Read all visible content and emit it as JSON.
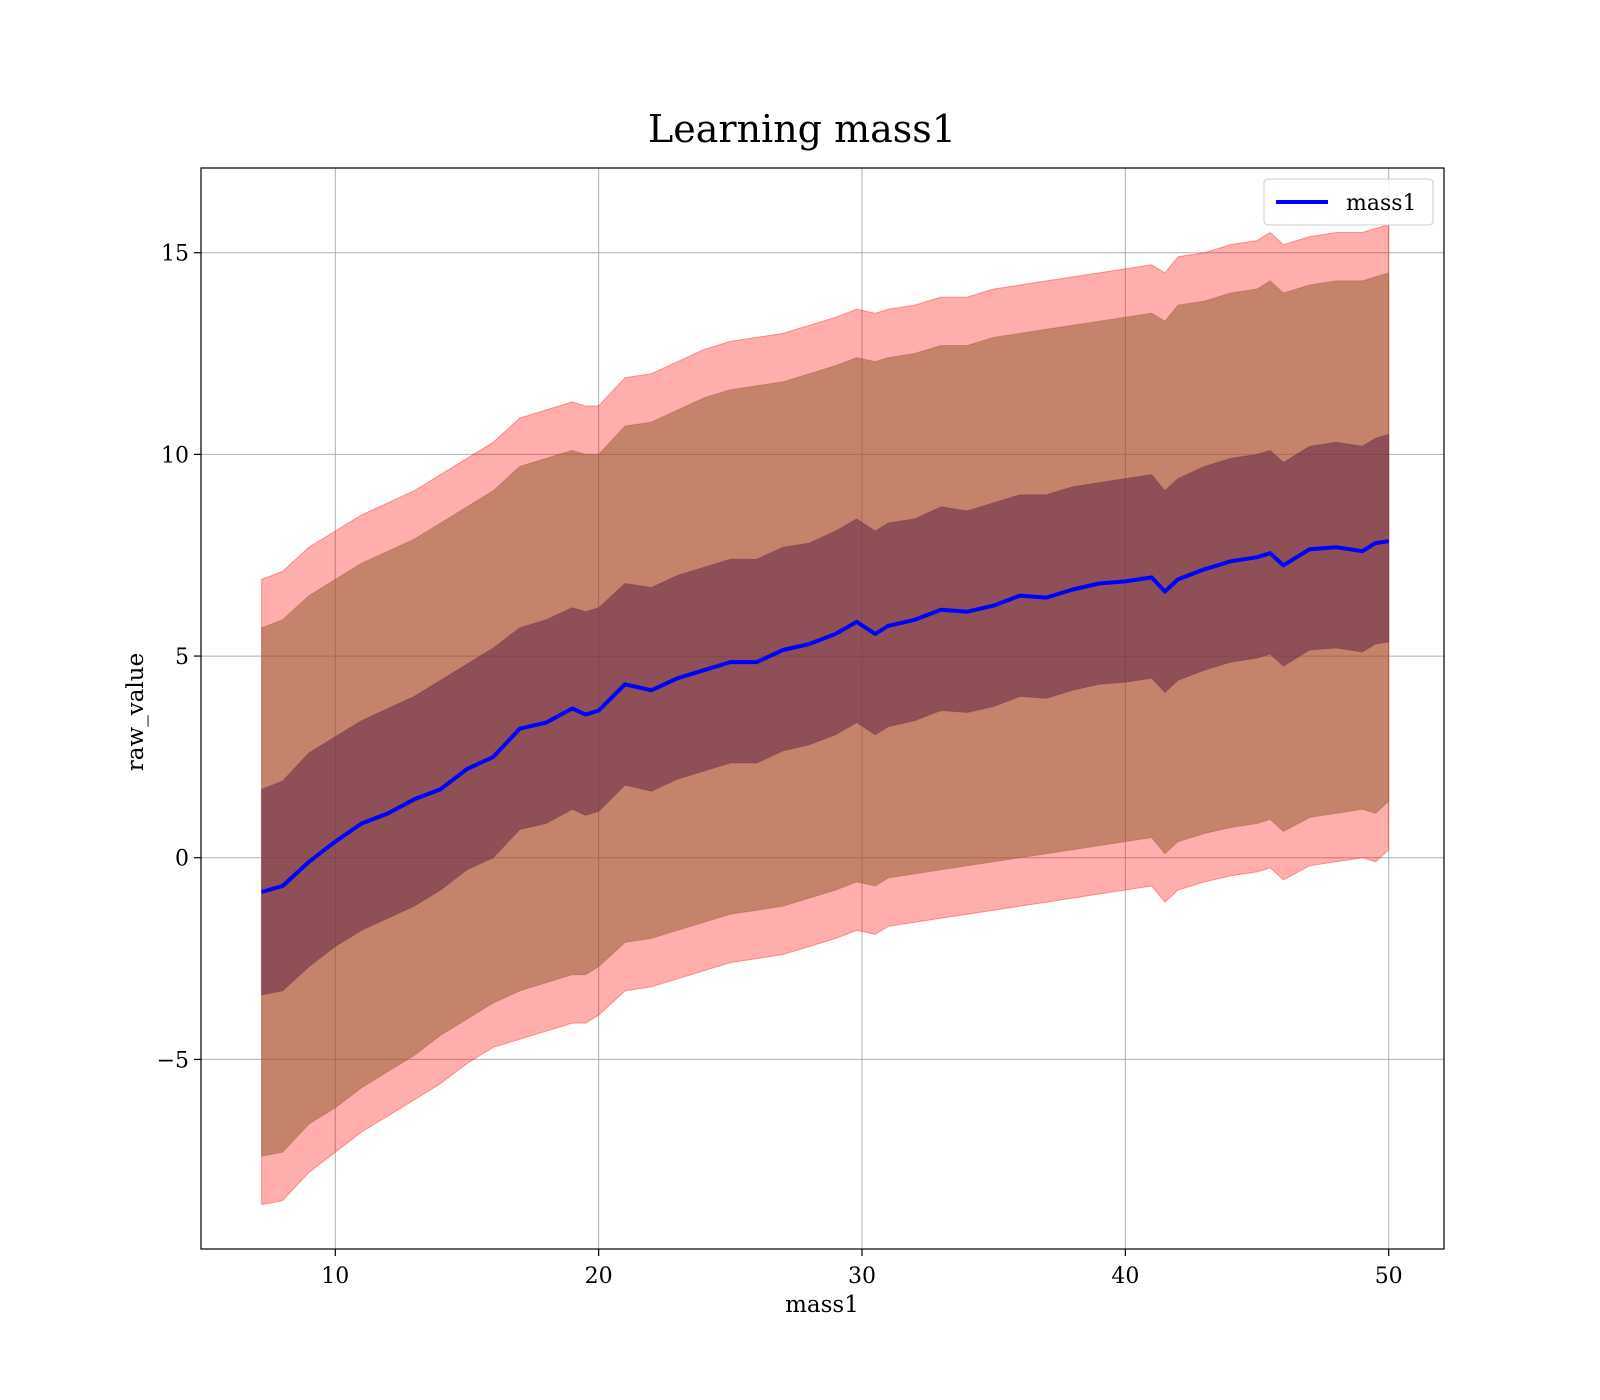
{
  "chart_data": {
    "type": "area",
    "title": "Learning mass1",
    "xlabel": "mass1",
    "ylabel": "raw_value",
    "xlim": [
      4.9,
      52.1
    ],
    "ylim": [
      -9.7,
      17.1
    ],
    "xticks": [
      10,
      20,
      30,
      40,
      50
    ],
    "xtick_labels": [
      "10",
      "20",
      "30",
      "40",
      "50"
    ],
    "yticks": [
      -5,
      0,
      5,
      10,
      15
    ],
    "ytick_labels": [
      "−5",
      "0",
      "5",
      "10",
      "15"
    ],
    "grid": true,
    "legend": {
      "position": "top-right",
      "entries": [
        "mass1"
      ]
    },
    "colors": {
      "line": "#0000ff",
      "band_outer": "#ff0000",
      "band_middle": "#8b5a2b",
      "band_inner": "#6a2d4a"
    },
    "x": [
      7.2,
      8.0,
      9.0,
      10.0,
      11.0,
      12.0,
      13.0,
      14.0,
      15.0,
      16.0,
      17.0,
      18.0,
      19.0,
      19.5,
      20.0,
      21.0,
      22.0,
      23.0,
      24.0,
      25.0,
      26.0,
      27.0,
      28.0,
      29.0,
      29.8,
      30.5,
      31.0,
      32.0,
      33.0,
      34.0,
      35.0,
      36.0,
      37.0,
      38.0,
      39.0,
      40.0,
      41.0,
      41.5,
      42.0,
      43.0,
      44.0,
      45.0,
      45.5,
      46.0,
      47.0,
      48.0,
      49.0,
      49.5,
      50.0
    ],
    "series": [
      {
        "name": "mass1",
        "role": "line",
        "values": [
          -0.85,
          -0.7,
          -0.1,
          0.4,
          0.85,
          1.1,
          1.45,
          1.7,
          2.2,
          2.5,
          3.2,
          3.35,
          3.7,
          3.55,
          3.65,
          4.3,
          4.15,
          4.45,
          4.65,
          4.85,
          4.85,
          5.15,
          5.3,
          5.55,
          5.85,
          5.55,
          5.75,
          5.9,
          6.15,
          6.1,
          6.25,
          6.5,
          6.45,
          6.65,
          6.8,
          6.85,
          6.95,
          6.6,
          6.9,
          7.15,
          7.35,
          7.45,
          7.55,
          7.25,
          7.65,
          7.7,
          7.6,
          7.8,
          7.85
        ]
      },
      {
        "name": "band_outer",
        "role": "band",
        "lower": [
          -8.6,
          -8.5,
          -7.8,
          -7.3,
          -6.8,
          -6.4,
          -6.0,
          -5.6,
          -5.1,
          -4.7,
          -4.5,
          -4.3,
          -4.1,
          -4.1,
          -3.9,
          -3.3,
          -3.2,
          -3.0,
          -2.8,
          -2.6,
          -2.5,
          -2.4,
          -2.2,
          -2.0,
          -1.8,
          -1.9,
          -1.7,
          -1.6,
          -1.5,
          -1.4,
          -1.3,
          -1.2,
          -1.1,
          -1.0,
          -0.9,
          -0.8,
          -0.7,
          -1.1,
          -0.8,
          -0.6,
          -0.45,
          -0.35,
          -0.25,
          -0.55,
          -0.2,
          -0.1,
          0.0,
          -0.1,
          0.2
        ],
        "upper": [
          6.9,
          7.1,
          7.7,
          8.1,
          8.5,
          8.8,
          9.1,
          9.5,
          9.9,
          10.3,
          10.9,
          11.1,
          11.3,
          11.2,
          11.2,
          11.9,
          12.0,
          12.3,
          12.6,
          12.8,
          12.9,
          13.0,
          13.2,
          13.4,
          13.6,
          13.5,
          13.6,
          13.7,
          13.9,
          13.9,
          14.1,
          14.2,
          14.3,
          14.4,
          14.5,
          14.6,
          14.7,
          14.5,
          14.9,
          15.0,
          15.2,
          15.3,
          15.5,
          15.2,
          15.4,
          15.5,
          15.5,
          15.6,
          15.7
        ]
      },
      {
        "name": "band_middle",
        "role": "band",
        "lower": [
          -7.4,
          -7.3,
          -6.6,
          -6.2,
          -5.7,
          -5.3,
          -4.9,
          -4.4,
          -4.0,
          -3.6,
          -3.3,
          -3.1,
          -2.9,
          -2.9,
          -2.7,
          -2.1,
          -2.0,
          -1.8,
          -1.6,
          -1.4,
          -1.3,
          -1.2,
          -1.0,
          -0.8,
          -0.6,
          -0.7,
          -0.5,
          -0.4,
          -0.3,
          -0.2,
          -0.1,
          0.0,
          0.1,
          0.2,
          0.3,
          0.4,
          0.5,
          0.1,
          0.4,
          0.6,
          0.75,
          0.85,
          0.95,
          0.65,
          1.0,
          1.1,
          1.2,
          1.1,
          1.4
        ],
        "upper": [
          5.7,
          5.9,
          6.5,
          6.9,
          7.3,
          7.6,
          7.9,
          8.3,
          8.7,
          9.1,
          9.7,
          9.9,
          10.1,
          10.0,
          10.0,
          10.7,
          10.8,
          11.1,
          11.4,
          11.6,
          11.7,
          11.8,
          12.0,
          12.2,
          12.4,
          12.3,
          12.4,
          12.5,
          12.7,
          12.7,
          12.9,
          13.0,
          13.1,
          13.2,
          13.3,
          13.4,
          13.5,
          13.3,
          13.7,
          13.8,
          14.0,
          14.1,
          14.3,
          14.0,
          14.2,
          14.3,
          14.3,
          14.4,
          14.5
        ]
      },
      {
        "name": "band_inner",
        "role": "band",
        "lower": [
          -3.4,
          -3.3,
          -2.7,
          -2.2,
          -1.8,
          -1.5,
          -1.2,
          -0.8,
          -0.3,
          0.0,
          0.7,
          0.85,
          1.2,
          1.05,
          1.15,
          1.8,
          1.65,
          1.95,
          2.15,
          2.35,
          2.35,
          2.65,
          2.8,
          3.05,
          3.35,
          3.05,
          3.25,
          3.4,
          3.65,
          3.6,
          3.75,
          4.0,
          3.95,
          4.15,
          4.3,
          4.35,
          4.45,
          4.1,
          4.4,
          4.65,
          4.85,
          4.95,
          5.05,
          4.75,
          5.15,
          5.2,
          5.1,
          5.3,
          5.35
        ],
        "upper": [
          1.7,
          1.9,
          2.6,
          3.0,
          3.4,
          3.7,
          4.0,
          4.4,
          4.8,
          5.2,
          5.7,
          5.9,
          6.2,
          6.1,
          6.2,
          6.8,
          6.7,
          7.0,
          7.2,
          7.4,
          7.4,
          7.7,
          7.8,
          8.1,
          8.4,
          8.1,
          8.3,
          8.4,
          8.7,
          8.6,
          8.8,
          9.0,
          9.0,
          9.2,
          9.3,
          9.4,
          9.5,
          9.1,
          9.4,
          9.7,
          9.9,
          10.0,
          10.1,
          9.8,
          10.2,
          10.3,
          10.2,
          10.4,
          10.5
        ]
      }
    ]
  }
}
